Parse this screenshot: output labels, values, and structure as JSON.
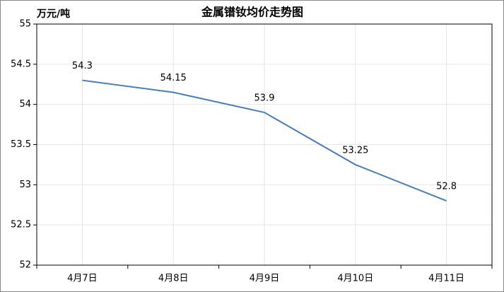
{
  "chart_data": {
    "type": "line",
    "title": "金属镨钕均价走势图",
    "y_label": "万元/吨",
    "categories": [
      "4月7日",
      "4月8日",
      "4月9日",
      "4月10日",
      "4月11日"
    ],
    "values": [
      54.3,
      54.15,
      53.9,
      53.25,
      52.8
    ],
    "color": "#4a7ebb",
    "ylim": [
      52,
      55
    ],
    "yticks": [
      52,
      52.5,
      53,
      53.5,
      54,
      54.5,
      55
    ],
    "grid": true
  }
}
